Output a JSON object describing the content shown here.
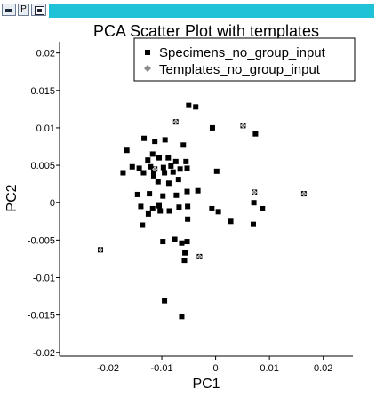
{
  "window": {
    "panel_label": "P"
  },
  "colors": {
    "titlebar_accent": "#1fc2d6",
    "specimens": "#000000",
    "templates_fill": "#ffffff",
    "templates_marker": "#8a8a8a"
  },
  "icons": {
    "minimize": "minimize-icon",
    "view": "grid-view-icon"
  },
  "chart_data": {
    "type": "scatter",
    "title": "PCA Scatter Plot with templates",
    "xlabel": "PC1",
    "ylabel": "PC2",
    "xlim": [
      -0.029,
      0.0255
    ],
    "ylim": [
      -0.0205,
      0.0215
    ],
    "xticks": [
      -0.02,
      -0.01,
      0,
      0.01,
      0.02
    ],
    "xtick_labels": [
      "-0.02",
      "-0.01",
      "0",
      "0.01",
      "0.02"
    ],
    "yticks": [
      0.02,
      0.015,
      0.01,
      0.005,
      0,
      -0.005,
      -0.01,
      -0.015,
      -0.02
    ],
    "ytick_labels": [
      "0.02",
      "0.015",
      "0.01",
      "0.005",
      "0",
      "-0.005",
      "-0.01",
      "-0.015",
      "-0.02"
    ],
    "grid": false,
    "legend_position": "top-right",
    "series": [
      {
        "name": "Specimens_no_group_input",
        "marker": "square",
        "points": [
          [
            -0.005,
            0.013
          ],
          [
            -0.0037,
            0.0128
          ],
          [
            -0.0006,
            0.01
          ],
          [
            0.0074,
            0.0092
          ],
          [
            -0.0133,
            0.0086
          ],
          [
            -0.0113,
            0.0082
          ],
          [
            -0.006,
            0.0077
          ],
          [
            -0.0094,
            0.0084
          ],
          [
            -0.0165,
            0.007
          ],
          [
            -0.0117,
            0.0065
          ],
          [
            -0.0105,
            0.006
          ],
          [
            -0.0126,
            0.0057
          ],
          [
            -0.0088,
            0.006
          ],
          [
            -0.0074,
            0.0055
          ],
          [
            -0.0055,
            0.0055
          ],
          [
            -0.0155,
            0.0048
          ],
          [
            -0.0142,
            0.0046
          ],
          [
            -0.0121,
            0.0048
          ],
          [
            -0.0097,
            0.0047
          ],
          [
            -0.0083,
            0.0049
          ],
          [
            -0.0066,
            0.0045
          ],
          [
            -0.0053,
            0.0046
          ],
          [
            -0.0095,
            0.004
          ],
          [
            -0.0079,
            0.0041
          ],
          [
            -0.0115,
            0.0042
          ],
          [
            -0.0172,
            0.004
          ],
          [
            -0.0134,
            0.004
          ],
          [
            0.0002,
            0.0042
          ],
          [
            -0.0115,
            0.0036
          ],
          [
            -0.0107,
            0.0028
          ],
          [
            -0.0069,
            0.0031
          ],
          [
            -0.0087,
            0.0026
          ],
          [
            -0.0053,
            0.0015
          ],
          [
            -0.0033,
            0.0016
          ],
          [
            -0.0145,
            0.0011
          ],
          [
            -0.0123,
            0.0012
          ],
          [
            -0.0098,
            0.0009
          ],
          [
            -0.0073,
            0.001
          ],
          [
            -0.0105,
            -0.0004
          ],
          [
            -0.0139,
            -0.0005
          ],
          [
            -0.0117,
            -0.0008
          ],
          [
            -0.0103,
            -0.0011
          ],
          [
            -0.0086,
            -0.0011
          ],
          [
            -0.0068,
            -0.0006
          ],
          [
            -0.0052,
            -0.0005
          ],
          [
            -0.0007,
            -0.0008
          ],
          [
            0.0005,
            -0.0012
          ],
          [
            0.0071,
            0
          ],
          [
            0.0087,
            -0.0008
          ],
          [
            -0.0052,
            -0.0022
          ],
          [
            -0.0125,
            -0.0015
          ],
          [
            -0.0136,
            -0.003
          ],
          [
            0.0028,
            -0.0025
          ],
          [
            0.007,
            -0.0029
          ],
          [
            -0.0098,
            -0.0052
          ],
          [
            -0.0076,
            -0.0049
          ],
          [
            -0.0063,
            -0.0054
          ],
          [
            -0.0057,
            -0.0067
          ],
          [
            -0.0058,
            -0.0077
          ],
          [
            -0.0053,
            -0.0052
          ],
          [
            -0.0095,
            -0.0131
          ],
          [
            -0.0063,
            -0.0152
          ]
        ]
      },
      {
        "name": "Templates_no_group_input",
        "marker": "diamond",
        "points": [
          [
            -0.0074,
            0.0108
          ],
          [
            0.0051,
            0.0103
          ],
          [
            -0.0113,
            0.0045
          ],
          [
            0.0072,
            0.0014
          ],
          [
            0.0164,
            0.0012
          ],
          [
            -0.0214,
            -0.0063
          ],
          [
            -0.003,
            -0.0072
          ]
        ]
      }
    ]
  }
}
